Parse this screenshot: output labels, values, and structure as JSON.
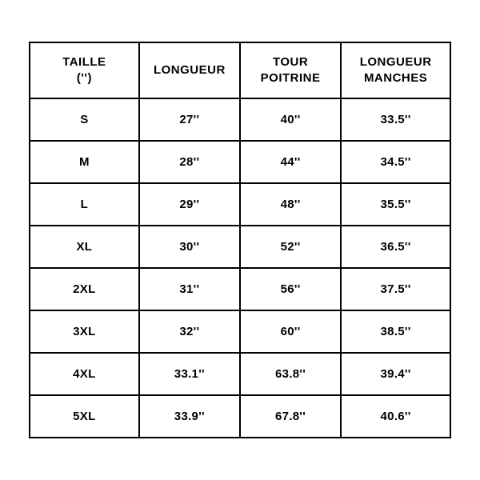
{
  "table": {
    "type": "table",
    "background_color": "#ffffff",
    "border_color": "#000000",
    "border_width": 2,
    "text_color": "#000000",
    "header_fontsize": 15,
    "cell_fontsize": 15,
    "font_weight": 900,
    "column_widths_pct": [
      26,
      24,
      24,
      26
    ],
    "columns": [
      {
        "line1": "TAILLE",
        "line2": "('')"
      },
      {
        "line1": "LONGUEUR",
        "line2": ""
      },
      {
        "line1": "TOUR",
        "line2": "POITRINE"
      },
      {
        "line1": "LONGUEUR",
        "line2": "MANCHES"
      }
    ],
    "rows": [
      [
        "S",
        "27''",
        "40''",
        "33.5''"
      ],
      [
        "M",
        "28''",
        "44''",
        "34.5''"
      ],
      [
        "L",
        "29''",
        "48''",
        "35.5''"
      ],
      [
        "XL",
        "30''",
        "52''",
        "36.5''"
      ],
      [
        "2XL",
        "31''",
        "56''",
        "37.5''"
      ],
      [
        "3XL",
        "32''",
        "60''",
        "38.5''"
      ],
      [
        "4XL",
        "33.1''",
        "63.8''",
        "39.4''"
      ],
      [
        "5XL",
        "33.9''",
        "67.8''",
        "40.6''"
      ]
    ]
  }
}
